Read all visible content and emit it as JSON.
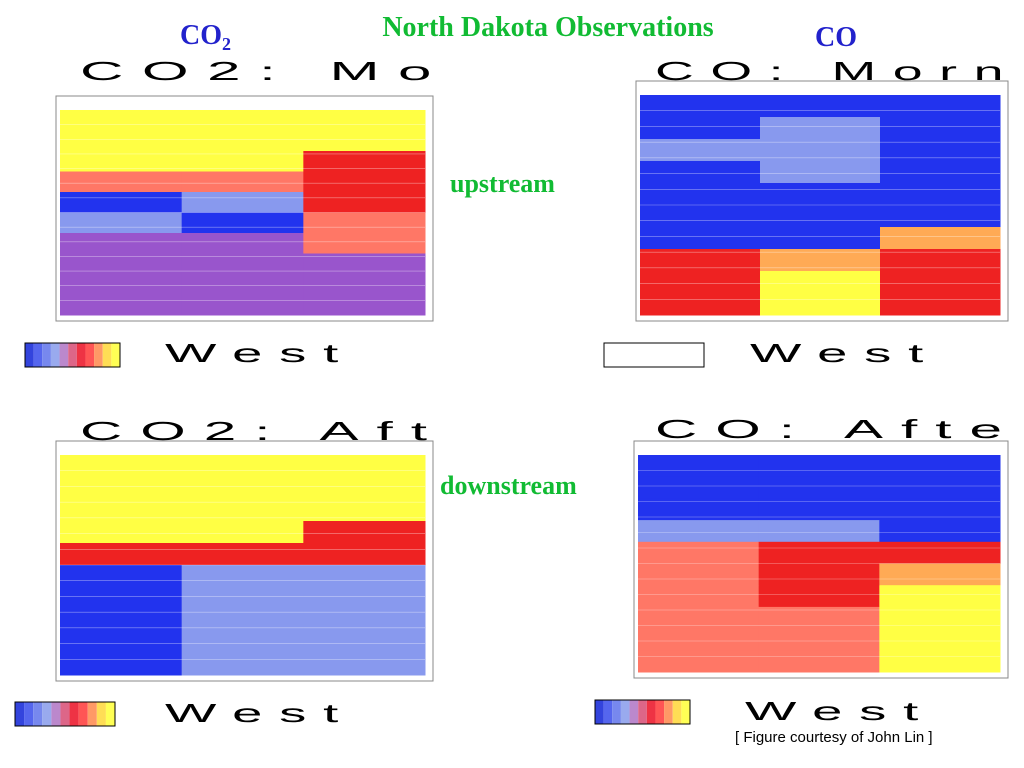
{
  "header": {
    "co2": {
      "main": "CO",
      "sub": "2"
    },
    "title": "North Dakota Observations",
    "co": "CO"
  },
  "labels": {
    "upstream": "upstream",
    "downstream": "downstream"
  },
  "panels": [
    {
      "title": "CO2: Mo",
      "xlabel": "West"
    },
    {
      "title": "CO: Morn",
      "xlabel": "West"
    },
    {
      "title": "CO2: Aft",
      "xlabel": "West"
    },
    {
      "title": "CO: Afte",
      "xlabel": "West"
    }
  ],
  "credit": "[ Figure courtesy of John Lin ]"
}
